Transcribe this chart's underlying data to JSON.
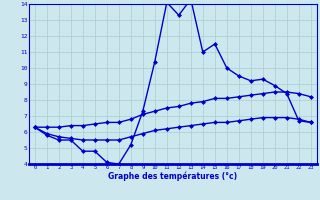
{
  "xlabel": "Graphe des températures (°c)",
  "x_values": [
    0,
    1,
    2,
    3,
    4,
    5,
    6,
    7,
    8,
    9,
    10,
    11,
    12,
    13,
    14,
    15,
    16,
    17,
    18,
    19,
    20,
    21,
    22,
    23
  ],
  "line1": [
    6.3,
    5.8,
    5.5,
    5.5,
    4.8,
    4.8,
    4.1,
    4.0,
    5.2,
    7.3,
    10.4,
    14.1,
    13.3,
    14.3,
    11.0,
    11.5,
    10.0,
    9.5,
    9.2,
    9.3,
    8.9,
    8.4,
    6.7,
    6.6
  ],
  "line2": [
    6.3,
    5.9,
    5.7,
    5.6,
    5.5,
    5.5,
    5.5,
    5.5,
    5.7,
    5.9,
    6.1,
    6.2,
    6.3,
    6.4,
    6.5,
    6.6,
    6.6,
    6.7,
    6.8,
    6.9,
    6.9,
    6.9,
    6.8,
    6.6
  ],
  "line3": [
    6.3,
    6.3,
    6.3,
    6.4,
    6.4,
    6.5,
    6.6,
    6.6,
    6.8,
    7.1,
    7.3,
    7.5,
    7.6,
    7.8,
    7.9,
    8.1,
    8.1,
    8.2,
    8.3,
    8.4,
    8.5,
    8.5,
    8.4,
    8.2
  ],
  "ylim": [
    4,
    14
  ],
  "xlim": [
    -0.5,
    23.5
  ],
  "yticks": [
    4,
    5,
    6,
    7,
    8,
    9,
    10,
    11,
    12,
    13,
    14
  ],
  "xticks": [
    0,
    1,
    2,
    3,
    4,
    5,
    6,
    7,
    8,
    9,
    10,
    11,
    12,
    13,
    14,
    15,
    16,
    17,
    18,
    19,
    20,
    21,
    22,
    23
  ],
  "line_color": "#0000cc",
  "bg_color": "#cce8ee",
  "grid_color": "#aacccc",
  "marker": "D",
  "marker_size": 2.0,
  "linewidth": 1.0
}
